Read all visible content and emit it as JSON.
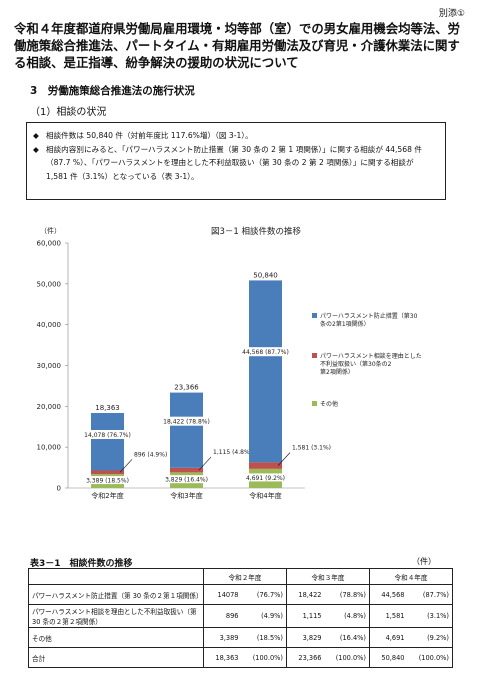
{
  "attachment_label": "別添①",
  "doc_title": "令和４年度都道府県労働局雇用環境・均等部（室）での男女雇用機会均等法、労働施策総合推進法、パートタイム・有期雇用労働法及び育児・介護休業法に関する相談、是正指導、紛争解決の援助の状況について",
  "section_heading": "3　労働施策総合推進法の施行状況",
  "sub_heading": "（1）相談の状況",
  "summary": [
    {
      "mark": "◆",
      "text": "相談件数は 50,840 件（対前年度比 117.6%増）（図 3-1）。"
    },
    {
      "mark": "◆",
      "text": "相談内容別にみると、「パワーハラスメント防止措置（第 30 条の 2 第 1 項関係）」に関する相談が 44,568 件（87.7 %）、「パワーハラスメントを理由とした不利益取扱い（第 30 条の 2 第 2 項関係）」に関する相談が 1,581 件（3.1%）となっている（表 3-1）。"
    }
  ],
  "chart": {
    "unit_label": "（件）",
    "title": "図3－1 相談件数の推移",
    "colors": {
      "power": "#4a7ebb",
      "disadv": "#c0504d",
      "other": "#9bbb59"
    },
    "legend": [
      {
        "key": "power",
        "label": "パワーハラスメント防止措置（第30条の2第1項関係）"
      },
      {
        "key": "disadv",
        "label": "パワーハラスメント相談を理由とした不利益取扱い（第30条の2第2項関係）"
      },
      {
        "key": "other",
        "label": "その他"
      }
    ]
  },
  "chart_data": {
    "type": "bar",
    "stacked": true,
    "categories": [
      "令和2年度",
      "令和3年度",
      "令和4年度"
    ],
    "ylim": [
      0,
      60000
    ],
    "yticks": [
      "0",
      "10,000",
      "20,000",
      "30,000",
      "40,000",
      "50,000",
      "60,000"
    ],
    "series": [
      {
        "name": "その他",
        "values": [
          3389,
          3829,
          4691
        ]
      },
      {
        "name": "パワーハラスメント相談を理由とした不利益取扱い（第30条の2第2項関係）",
        "values": [
          896,
          1115,
          1581
        ]
      },
      {
        "name": "パワーハラスメント防止措置（第30条の2第1項関係）",
        "values": [
          14078,
          18422,
          44568
        ]
      }
    ],
    "totals": [
      "18,363",
      "23,366",
      "50,840"
    ],
    "labels": {
      "power": [
        "14,078 (76.7%)",
        "18,422 (78.8%)",
        "44,568 (87.7%)"
      ],
      "disadv": [
        "896 (4.9%)",
        "1,115 (4.8%)",
        "1,581 (3.1%)"
      ],
      "other": [
        "3,389 (18.5%)",
        "3,829 (16.4%)",
        "4,691 (9.2%)"
      ]
    }
  },
  "table": {
    "title": "表3－1　相談件数の推移",
    "unit": "（件）",
    "headers": [
      "令和２年度",
      "令和３年度",
      "令和４年度"
    ],
    "rows": [
      {
        "label": "パワーハラスメント防止措置（第 30 条の２第１項関係）",
        "cells": [
          [
            "14078",
            "(76.7%)"
          ],
          [
            "18,422",
            "(78.8%)"
          ],
          [
            "44,568",
            "(87.7%)"
          ]
        ]
      },
      {
        "label": "パワーハラスメント相談を理由とした不利益取扱い（第 30 条の２第２項関係）",
        "cells": [
          [
            "896",
            "(4.9%)"
          ],
          [
            "1,115",
            "(4.8%)"
          ],
          [
            "1,581",
            "(3.1%)"
          ]
        ]
      },
      {
        "label": "その他",
        "cells": [
          [
            "3,389",
            "(18.5%)"
          ],
          [
            "3,829",
            "(16.4%)"
          ],
          [
            "4,691",
            "(9.2%)"
          ]
        ]
      },
      {
        "label": "合計",
        "cells": [
          [
            "18,363",
            "(100.0%)"
          ],
          [
            "23,366",
            "(100.0%)"
          ],
          [
            "50,840",
            "(100.0%)"
          ]
        ]
      }
    ]
  }
}
